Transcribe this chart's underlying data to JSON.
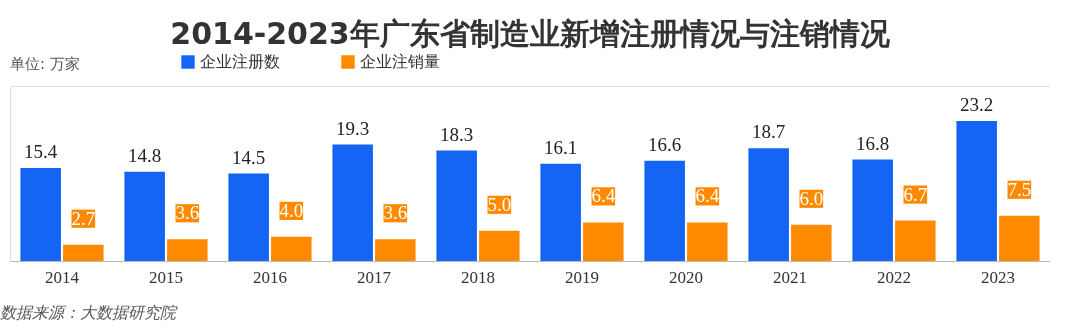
{
  "chart_data": {
    "type": "bar",
    "title": "2014-2023年广东省制造业新增注册情况与注销情况",
    "subtitle": "单位: 万家",
    "categories": [
      "2014",
      "2015",
      "2016",
      "2017",
      "2018",
      "2019",
      "2020",
      "2021",
      "2022",
      "2023"
    ],
    "series": [
      {
        "name": "企业注册数",
        "color": "#1565f5",
        "values": [
          15.4,
          14.8,
          14.5,
          19.3,
          18.3,
          16.1,
          16.6,
          18.7,
          16.8,
          23.2
        ],
        "value_labels": [
          "15.4",
          "14.8",
          "14.5",
          "19.3",
          "18.3",
          "16.1",
          "16.6",
          "18.7",
          "16.8",
          "23.2"
        ]
      },
      {
        "name": "企业注销量",
        "color": "#ff8a00",
        "values": [
          2.7,
          3.6,
          4.0,
          3.6,
          5.0,
          6.4,
          6.4,
          6.0,
          6.7,
          7.5
        ],
        "value_labels": [
          "2.7",
          "3.6",
          "4.0",
          "3.6",
          "5.0",
          "6.4",
          "6.4",
          "6.0",
          "6.7",
          "7.5"
        ]
      }
    ],
    "legend": "top",
    "annotations": [
      "数据来源：大数据研究院"
    ]
  }
}
